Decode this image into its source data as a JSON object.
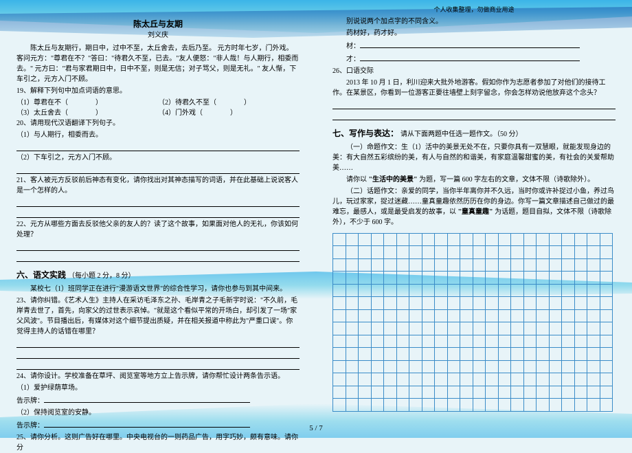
{
  "header_note": "个人收集整理，勿做商业用途",
  "left": {
    "title": "陈太丘与友期",
    "author": "刘义庆",
    "passage": "陈太丘与友期行，期日中，过中不至，太丘舍去，去后乃至。 元方时年七岁，门外戏。客问元方：\"尊君在不？\"答曰：\"待君久不至，已去。\"友人便怒：\"非人哉！与人期行，相委而去。\" 元方曰：\"君与家君期日中，日中不至，则是无信；对子骂父，则是无礼。\" 友人惭，下车引之，元方入门不顾。",
    "q19": "19、解释下列句中加点词语的意思。",
    "q19_1": "（1）尊君在不（　　　　）",
    "q19_2": "（2）待君久不至（　　　　）",
    "q19_3": "（3）太丘舍去（　　　　）",
    "q19_4": "（4）门外戏（　　　　）",
    "q20": "20、请用现代汉语翻译下列句子。",
    "q20_1": "（1）与人期行，相委而去。",
    "q20_2": "（2）下车引之，元方入门不顾。",
    "q21": "21、客人被元方反驳前后神态有变化，请你找出对其神态描写的词语，并在此基础上说说客人是一个怎样的人。",
    "q22": "22、元方从哪些方面去反驳他父亲的友人的？读了这个故事，如果面对他人的无礼，你该如何处理？",
    "section6": "六、语文实践",
    "section6_note": "（每小题 2 分，8 分）",
    "section6_intro": "某校七（1）班同学正在进行\"漫游语文世界\"的综合性学习，请你也参与到其中间来。",
    "q23": "23、请你纠错。《艺术人生》主持人在采访毛泽东之孙、毛岸青之子毛新宇时说：\"不久前，毛岸青去世了，首先，向家父的过世表示哀悼。\"就是这个看似平常的开场白，却引发了一场\"家父风波\"。节目播出后，有媒体对这个细节提出质疑，并在相关报道中称此为\"严重口误\"。你觉得主持人的话错在哪里？",
    "q24": "24、请你设计。学校准备在草坪、阅览室等地方立上告示牌，请你帮忙设计两条告示语。",
    "q24_1": "（1）爱护绿荫草场。",
    "q24_sign1": "告示牌：",
    "q24_2": "（2）保持阅览室的安静。",
    "q24_sign2": "告示牌：",
    "q25": "25、请你分析。这则广告好在哪里。中央电视台的一则药品广告，用字巧妙，颇有意味。请你分"
  },
  "right": {
    "r25_cont1": "别说说两个加点字的不同含义。",
    "r25_cont2": "药材好，药才好。",
    "r25_mat": "材：",
    "r25_cai": "才：",
    "q26": "26、口语交际",
    "q26_body": "2013 年 10 月 1 日，利川迎来大批外地游客。假如你作为志愿者参加了对他们的接待工作。在某景区，你看到一位游客正要往墙壁上刻字留念，你会怎样劝说他放弃这个念头？",
    "section7": "七、写作与表达：",
    "section7_note": "请从下面两题中任选一题作文。（50 分）",
    "w1_head": "（一）命题作文：生（1）活中的美景无处不在，只要你具有一双慧眼，就能发现身边的美：有大自然五彩缤纷的美，有人与自然的和谐美，有家庭温馨甜蜜的美，有社会的关爱帮助美……",
    "w1_req": "请你以",
    "w1_topic": "\"生活中的美景\"",
    "w1_req2": "为题，写一篇 600 字左右的文章，文体不限（诗歌除外）。",
    "w2_head": "（二）话题作文：亲爱的同学，当你半年离你并不久远，当时你或许补捉过小鱼，养过鸟儿，玩过家家，捉过迷藏……童真童趣依然历历在你的身边。你写一篇文章描述自己做过的最难忘，最感人，或是最受启发的故事，以",
    "w2_topic": "\"童真童趣\"",
    "w2_req": "为话题，题目自拟，文体不限（诗歌除外），不少于 600 字。"
  },
  "grid": {
    "rows": 14,
    "cols": 22,
    "border_color": "#3a8cc8"
  },
  "pagenum": "5 / 7",
  "colors": {
    "wave": "#3bb4e8",
    "bg": "#e8f4f8"
  }
}
